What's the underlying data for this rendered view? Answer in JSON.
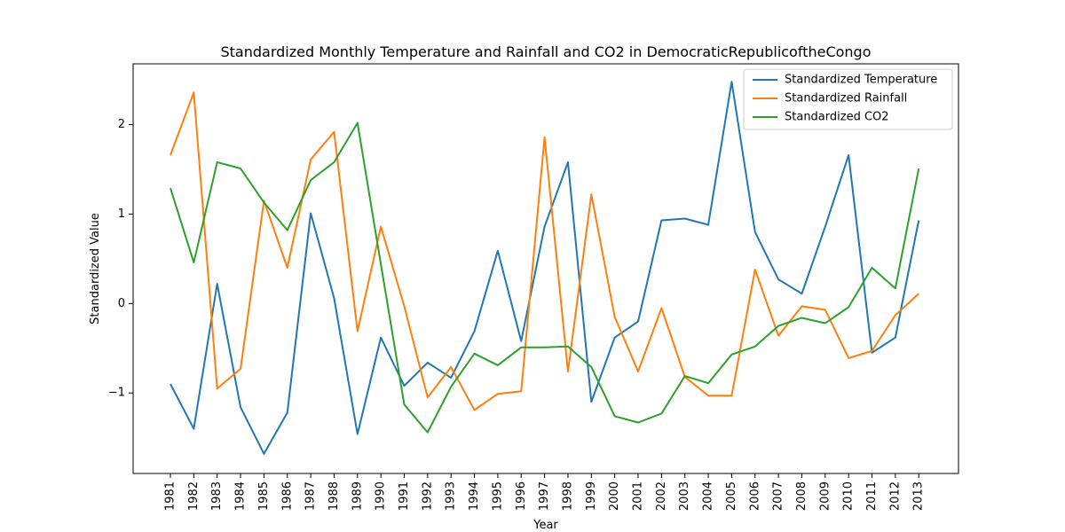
{
  "chart_data": {
    "type": "line",
    "title": "Standardized Monthly Temperature and Rainfall and CO2 in DemocraticRepublicoftheCongo",
    "xlabel": "Year",
    "ylabel": "Standardized Value",
    "ylim": [
      -1.9,
      2.68
    ],
    "yticks": [
      -1,
      0,
      1,
      2
    ],
    "ytick_labels": [
      "−1",
      "0",
      "1",
      "2"
    ],
    "grid": false,
    "legend_position": "top-right",
    "x": [
      "1981",
      "1982",
      "1983",
      "1984",
      "1985",
      "1986",
      "1987",
      "1988",
      "1989",
      "1990",
      "1991",
      "1992",
      "1993",
      "1994",
      "1995",
      "1996",
      "1997",
      "1998",
      "1999",
      "2000",
      "2001",
      "2002",
      "2003",
      "2004",
      "2005",
      "2006",
      "2007",
      "2008",
      "2009",
      "2010",
      "2011",
      "2012",
      "2013"
    ],
    "series": [
      {
        "name": "Standardized Temperature",
        "color": "#1f77b4",
        "values": [
          -0.9,
          -1.4,
          0.22,
          -1.16,
          -1.68,
          -1.22,
          1.01,
          0.06,
          -1.46,
          -0.38,
          -0.92,
          -0.66,
          -0.83,
          -0.31,
          0.59,
          -0.42,
          0.86,
          1.58,
          -1.1,
          -0.38,
          -0.2,
          0.93,
          0.95,
          0.88,
          2.48,
          0.8,
          0.27,
          0.11,
          0.86,
          1.66,
          -0.55,
          -0.38,
          0.93
        ]
      },
      {
        "name": "Standardized Rainfall",
        "color": "#ff7f0e",
        "values": [
          1.66,
          2.36,
          -0.95,
          -0.73,
          1.15,
          0.4,
          1.61,
          1.92,
          -0.31,
          0.86,
          -0.03,
          -1.05,
          -0.71,
          -1.19,
          -1.01,
          -0.98,
          1.86,
          -0.76,
          1.22,
          -0.15,
          -0.76,
          -0.05,
          -0.82,
          -1.03,
          -1.03,
          0.38,
          -0.36,
          -0.03,
          -0.07,
          -0.61,
          -0.53,
          -0.13,
          0.11
        ]
      },
      {
        "name": "Standardized CO2",
        "color": "#2ca02c",
        "values": [
          1.29,
          0.46,
          1.58,
          1.51,
          1.13,
          0.82,
          1.38,
          1.58,
          2.02,
          0.44,
          -1.13,
          -1.44,
          -0.93,
          -0.56,
          -0.69,
          -0.49,
          -0.49,
          -0.48,
          -0.71,
          -1.26,
          -1.33,
          -1.23,
          -0.81,
          -0.89,
          -0.57,
          -0.48,
          -0.25,
          -0.16,
          -0.22,
          -0.04,
          0.4,
          0.17,
          1.51
        ]
      }
    ]
  }
}
